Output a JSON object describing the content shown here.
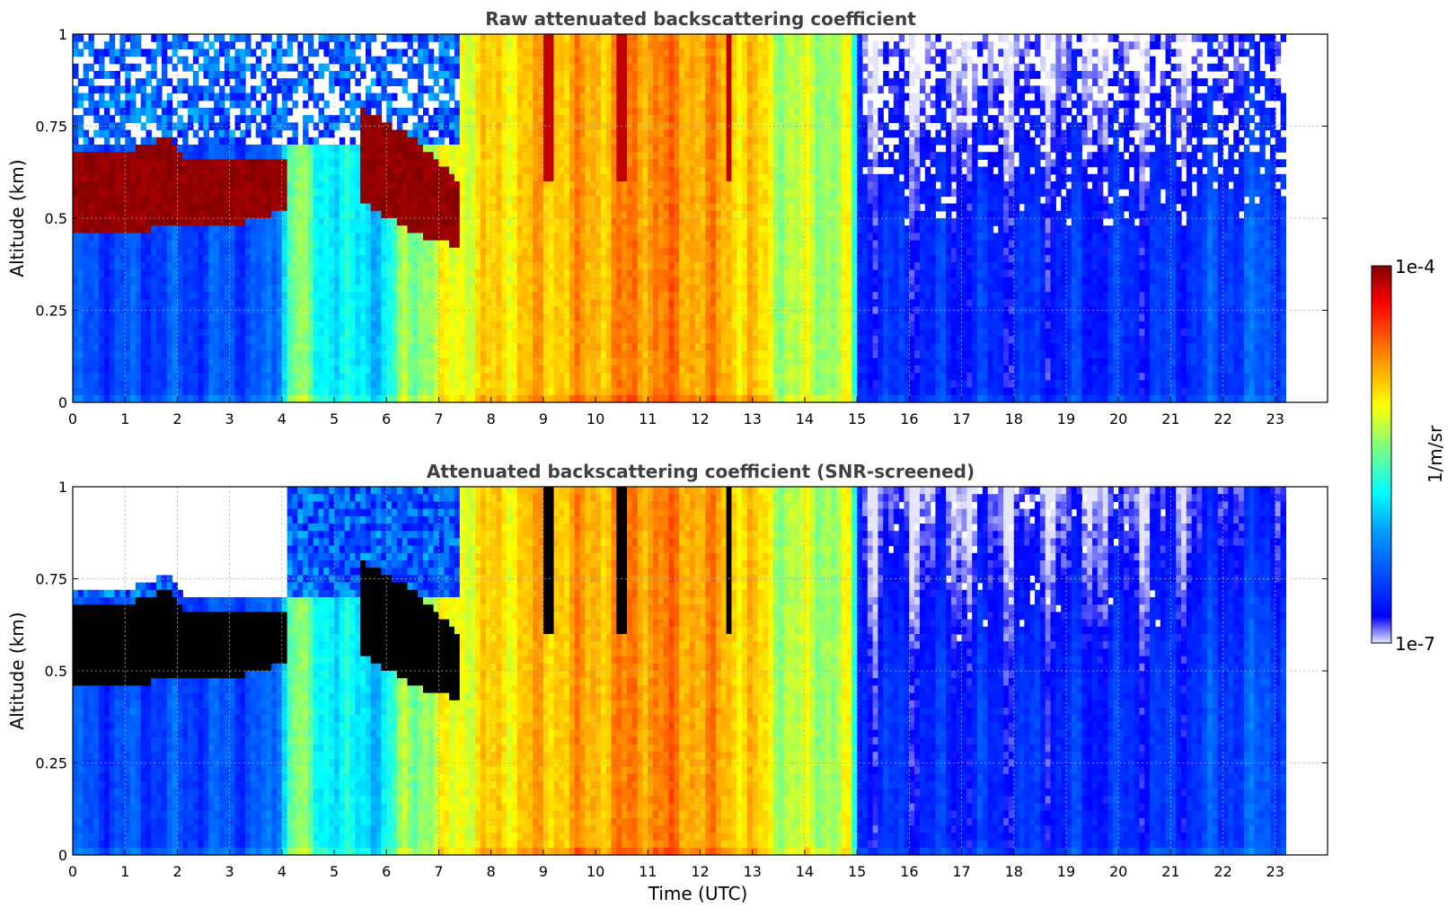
{
  "chart_data": [
    {
      "type": "heatmap",
      "title": "Raw attenuated backscattering coefficient",
      "xlabel": "",
      "ylabel": "Altitude (km)",
      "xlim": [
        0,
        24
      ],
      "ylim": [
        0,
        1
      ],
      "xticks": [
        "0",
        "1",
        "2",
        "3",
        "4",
        "5",
        "6",
        "7",
        "8",
        "9",
        "10",
        "11",
        "12",
        "13",
        "14",
        "15",
        "16",
        "17",
        "18",
        "19",
        "20",
        "21",
        "22",
        "23"
      ],
      "yticks": [
        "0",
        "0.25",
        "0.5",
        "0.75",
        "1"
      ],
      "grid": true,
      "data_extent_hours": [
        0,
        23.2
      ],
      "value_scale": "log10, range 1e-7 to 1e-4",
      "layers": [
        {
          "time_range_h": [
            0,
            4.1
          ],
          "altitude_range_km": [
            0.43,
            0.68
          ],
          "level": "1e-4 (dark red)"
        },
        {
          "time_range_h": [
            5.5,
            7.4
          ],
          "altitude_range_km": [
            0.45,
            0.8
          ],
          "level": "1e-4 (dark red)"
        },
        {
          "time_range_h": [
            7.4,
            13.4
          ],
          "altitude_range_km": [
            0,
            1
          ],
          "level": "~1e-5 (yellow-orange)"
        },
        {
          "time_range_h": [
            15,
            23.2
          ],
          "altitude_range_km": [
            0,
            1
          ],
          "level": "~1e-7 to 1e-6 (blue)"
        }
      ]
    },
    {
      "type": "heatmap",
      "title": "Attenuated backscattering coefficient (SNR-screened)",
      "xlabel": "Time (UTC)",
      "ylabel": "Altitude (km)",
      "xlim": [
        0,
        24
      ],
      "ylim": [
        0,
        1
      ],
      "xticks": [
        "0",
        "1",
        "2",
        "3",
        "4",
        "5",
        "6",
        "7",
        "8",
        "9",
        "10",
        "11",
        "12",
        "13",
        "14",
        "15",
        "16",
        "17",
        "18",
        "19",
        "20",
        "21",
        "22",
        "23"
      ],
      "yticks": [
        "0",
        "0.25",
        "0.5",
        "0.75",
        "1"
      ],
      "grid": true,
      "data_extent_hours": [
        0,
        23.2
      ],
      "value_scale": "log10, range 1e-7 to 1e-4",
      "layers": [
        {
          "time_range_h": [
            0,
            4.1
          ],
          "altitude_range_km": [
            0.45,
            0.66
          ],
          "level": "saturated (black)"
        },
        {
          "time_range_h": [
            0,
            4.1
          ],
          "altitude_range_km": [
            0.72,
            1
          ],
          "level": "screened out (white)"
        },
        {
          "time_range_h": [
            7.4,
            13.4
          ],
          "altitude_range_km": [
            0,
            1
          ],
          "level": "~1e-5 (yellow-orange)"
        },
        {
          "time_range_h": [
            15,
            23.2
          ],
          "altitude_range_km": [
            0,
            1
          ],
          "level": "~1e-7 to 1e-6 (blue)"
        }
      ]
    }
  ],
  "colorbar": {
    "label": "1/m/sr",
    "max_label": "1e-4",
    "min_label": "1e-7",
    "colormap": "jet",
    "colors": [
      "#e6e6fa",
      "#0000ff",
      "#00a0ff",
      "#00ffff",
      "#7fff7f",
      "#ffff00",
      "#ff8000",
      "#ff0000",
      "#800000"
    ]
  }
}
